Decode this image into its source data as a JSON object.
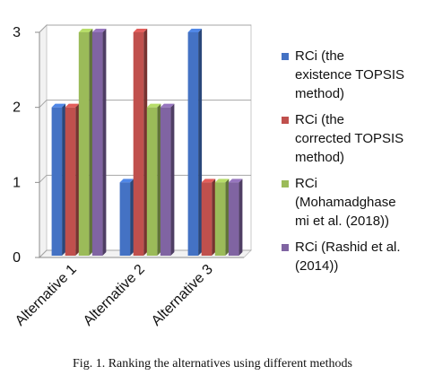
{
  "chart_data": {
    "type": "bar",
    "style": "3d-clustered-bar",
    "categories": [
      "Alternative 1",
      "Alternative 2",
      "Alternative 3"
    ],
    "series": [
      {
        "name": "RCi (the existence TOPSIS method)",
        "values": [
          2,
          1,
          3
        ],
        "color": "#4472c4"
      },
      {
        "name": "RCi (the corrected TOPSIS method)",
        "values": [
          2,
          3,
          1
        ],
        "color": "#c0504d"
      },
      {
        "name": "RCi (Mohamadghasemi et al. (2018))",
        "values": [
          3,
          2,
          1
        ],
        "color": "#9bbb59"
      },
      {
        "name": "RCi (Rashid et al. (2014))",
        "values": [
          3,
          2,
          1
        ],
        "color": "#8064a2"
      }
    ],
    "yticks": [
      "0",
      "1",
      "2",
      "3"
    ],
    "ylim": [
      0,
      3
    ],
    "grid": true,
    "legend_position": "right",
    "title": "",
    "xlabel": "",
    "ylabel": ""
  },
  "legend_lines": [
    [
      "RCi (the",
      "existence TOPSIS",
      "method)"
    ],
    [
      "RCi (the",
      "corrected TOPSIS",
      "method)"
    ],
    [
      "RCi",
      "(Mohamadghase",
      "mi et al. (2018))"
    ],
    [
      "RCi (Rashid et al.",
      "(2014))"
    ]
  ],
  "caption": "Fig. 1. Ranking the alternatives using different methods"
}
